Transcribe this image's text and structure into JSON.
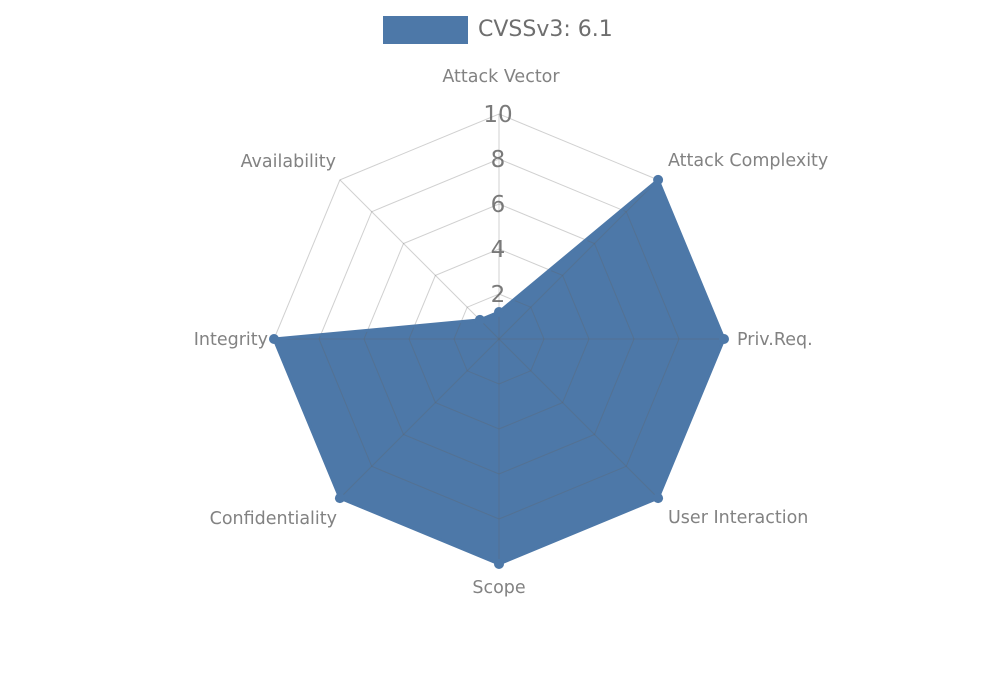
{
  "page": {
    "background": "#ffffff"
  },
  "legend": {
    "label": "CVSSv3: 6.1",
    "swatch_color": "#4d78a8"
  },
  "chart_data": {
    "type": "radar",
    "title": "",
    "axes": [
      "Attack Vector",
      "Attack Complexity",
      "Priv.Req.",
      "User Interaction",
      "Scope",
      "Confidentiality",
      "Integrity",
      "Availability"
    ],
    "series": [
      {
        "name": "CVSSv3: 6.1",
        "color": "#4d78a8",
        "values": [
          1.2,
          10,
          10,
          10,
          10,
          10,
          10,
          1.2
        ]
      }
    ],
    "radial_ticks": [
      2,
      4,
      6,
      8,
      10
    ],
    "rlim": [
      0,
      10
    ],
    "grid": true,
    "start_axis": "top",
    "direction": "clockwise",
    "legend_position": "top-center",
    "colors": {
      "fill": "#4d78a8",
      "line": "#4d78a8",
      "marker": "#4d78a8",
      "grid": "rgba(100,100,100,0.30)",
      "axis_label_text": "#828282",
      "tick_text": "#7a7a7a",
      "tick_box_bg": "#ffffff"
    }
  }
}
